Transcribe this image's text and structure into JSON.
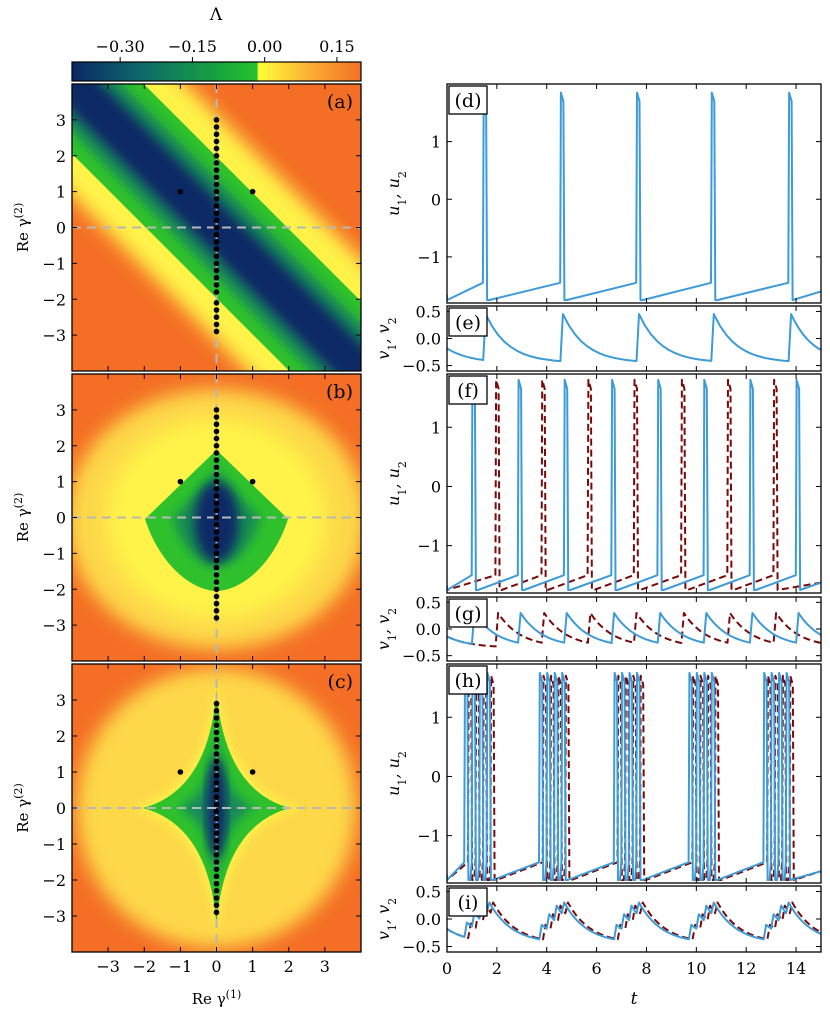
{
  "colorbar": {
    "label": "Λ",
    "ticks": [
      "−0.30",
      "−0.15",
      "0.00",
      "0.15"
    ],
    "tick_values": [
      -0.3,
      -0.15,
      0.0,
      0.15
    ],
    "range": [
      -0.4,
      0.2
    ],
    "colors": {
      "min": "#0b2a6b",
      "mid": "#1aa53a",
      "zero_low": "#22b830",
      "zero_high": "#ffff40",
      "max": "#f46f25"
    }
  },
  "chart_data": [
    {
      "type": "heatmap",
      "panel": "(a)",
      "xlabel": "Re γ(1)",
      "ylabel": "Re γ(2)",
      "xlim": [
        -4,
        4
      ],
      "ylim": [
        -4,
        4
      ],
      "xticks": [
        -3,
        -2,
        -1,
        0,
        1,
        2,
        3
      ],
      "yticks": [
        -3,
        -2,
        -1,
        0,
        1,
        2,
        3
      ],
      "stable_region": "diagonal band along x + y = 0",
      "points": [
        {
          "x": -1,
          "y": 1
        },
        {
          "x": 1,
          "y": 1
        },
        {
          "x": 0,
          "y": -2.9
        },
        {
          "x": 0,
          "y": -2.7
        },
        {
          "x": 0,
          "y": -2.5
        },
        {
          "x": 0,
          "y": -2.3
        },
        {
          "x": 0,
          "y": -2.1
        },
        {
          "x": 0,
          "y": -1.8
        },
        {
          "x": 0,
          "y": -1.6
        },
        {
          "x": 0,
          "y": -1.4
        },
        {
          "x": 0,
          "y": -1.2
        },
        {
          "x": 0,
          "y": -1.0
        },
        {
          "x": 0,
          "y": -0.8
        },
        {
          "x": 0,
          "y": -0.6
        },
        {
          "x": 0,
          "y": -0.4
        },
        {
          "x": 0,
          "y": -0.2
        },
        {
          "x": 0,
          "y": 0.0
        },
        {
          "x": 0,
          "y": 0.2
        },
        {
          "x": 0,
          "y": 0.4
        },
        {
          "x": 0,
          "y": 0.6
        },
        {
          "x": 0,
          "y": 0.8
        },
        {
          "x": 0,
          "y": 1.0
        },
        {
          "x": 0,
          "y": 1.2
        },
        {
          "x": 0,
          "y": 1.4
        },
        {
          "x": 0,
          "y": 1.6
        },
        {
          "x": 0,
          "y": 1.8
        },
        {
          "x": 0,
          "y": 2.0
        },
        {
          "x": 0,
          "y": 2.2
        },
        {
          "x": 0,
          "y": 2.4
        },
        {
          "x": 0,
          "y": 2.6
        },
        {
          "x": 0,
          "y": 2.8
        },
        {
          "x": 0,
          "y": 3.0
        }
      ]
    },
    {
      "type": "heatmap",
      "panel": "(b)",
      "xlabel": "",
      "ylabel": "Re γ(2)",
      "xlim": [
        -4,
        4
      ],
      "ylim": [
        -4,
        4
      ],
      "xticks": [],
      "yticks": [
        -3,
        -2,
        -1,
        0,
        1,
        2,
        3
      ],
      "stable_region": "diamond shaped region |x| + |y| < 2 with rounded lower half",
      "points": [
        {
          "x": -1,
          "y": 1
        },
        {
          "x": 1,
          "y": 1
        },
        {
          "x": 0,
          "y": -2.8
        },
        {
          "x": 0,
          "y": -2.6
        },
        {
          "x": 0,
          "y": -2.4
        },
        {
          "x": 0,
          "y": -2.2
        },
        {
          "x": 0,
          "y": -2.0
        },
        {
          "x": 0,
          "y": -1.8
        },
        {
          "x": 0,
          "y": -1.6
        },
        {
          "x": 0,
          "y": -1.4
        },
        {
          "x": 0,
          "y": -1.2
        },
        {
          "x": 0,
          "y": -1.0
        },
        {
          "x": 0,
          "y": -0.8
        },
        {
          "x": 0,
          "y": -0.6
        },
        {
          "x": 0,
          "y": -0.4
        },
        {
          "x": 0,
          "y": -0.2
        },
        {
          "x": 0,
          "y": 0.0
        },
        {
          "x": 0,
          "y": 0.2
        },
        {
          "x": 0,
          "y": 0.4
        },
        {
          "x": 0,
          "y": 0.6
        },
        {
          "x": 0,
          "y": 0.8
        },
        {
          "x": 0,
          "y": 1.0
        },
        {
          "x": 0,
          "y": 1.2
        },
        {
          "x": 0,
          "y": 1.4
        },
        {
          "x": 0,
          "y": 1.6
        },
        {
          "x": 0,
          "y": 1.8
        },
        {
          "x": 0,
          "y": 2.0
        },
        {
          "x": 0,
          "y": 2.2
        },
        {
          "x": 0,
          "y": 2.4
        },
        {
          "x": 0,
          "y": 2.6
        },
        {
          "x": 0,
          "y": 2.8
        },
        {
          "x": 0,
          "y": 3.0
        }
      ]
    },
    {
      "type": "heatmap",
      "panel": "(c)",
      "xlabel": "Re γ(1)",
      "ylabel": "Re γ(2)",
      "xlim": [
        -4,
        4
      ],
      "ylim": [
        -4,
        4
      ],
      "xticks": [
        -3,
        -2,
        -1,
        0,
        1,
        2,
        3
      ],
      "yticks": [
        -3,
        -2,
        -1,
        0,
        1,
        2,
        3
      ],
      "stable_region": "four-pointed star centered at origin",
      "points": [
        {
          "x": -1,
          "y": 1
        },
        {
          "x": 1,
          "y": 1
        },
        {
          "x": 0,
          "y": -2.9
        },
        {
          "x": 0,
          "y": -2.7
        },
        {
          "x": 0,
          "y": -2.5
        },
        {
          "x": 0,
          "y": -2.3
        },
        {
          "x": 0,
          "y": -2.1
        },
        {
          "x": 0,
          "y": -1.9
        },
        {
          "x": 0,
          "y": -1.7
        },
        {
          "x": 0,
          "y": -1.5
        },
        {
          "x": 0,
          "y": -1.3
        },
        {
          "x": 0,
          "y": -1.1
        },
        {
          "x": 0,
          "y": -0.9
        },
        {
          "x": 0,
          "y": -0.7
        },
        {
          "x": 0,
          "y": -0.5
        },
        {
          "x": 0,
          "y": -0.3
        },
        {
          "x": 0,
          "y": -0.1
        },
        {
          "x": 0,
          "y": 0.1
        },
        {
          "x": 0,
          "y": 0.3
        },
        {
          "x": 0,
          "y": 0.5
        },
        {
          "x": 0,
          "y": 0.7
        },
        {
          "x": 0,
          "y": 0.9
        },
        {
          "x": 0,
          "y": 1.1
        },
        {
          "x": 0,
          "y": 1.3
        },
        {
          "x": 0,
          "y": 1.5
        },
        {
          "x": 0,
          "y": 1.7
        },
        {
          "x": 0,
          "y": 1.9
        },
        {
          "x": 0,
          "y": 2.1
        },
        {
          "x": 0,
          "y": 2.3
        },
        {
          "x": 0,
          "y": 2.5
        },
        {
          "x": 0,
          "y": 2.7
        },
        {
          "x": 0,
          "y": 2.9
        }
      ]
    },
    {
      "type": "line",
      "panel": "(d)",
      "ylabel": "u1, u2",
      "xlim": [
        0,
        15
      ],
      "ylim": [
        -1.8,
        2.0
      ],
      "yticks": [
        -1,
        0,
        1
      ],
      "series": [
        {
          "name": "u1",
          "color": "#3d9bd8",
          "style": "solid",
          "spike_times": [
            1.45,
            4.55,
            7.6,
            10.6,
            13.7
          ],
          "peak": 1.85,
          "low": -1.75,
          "pre": -1.45
        }
      ]
    },
    {
      "type": "line",
      "panel": "(e)",
      "ylabel": "v1, v2",
      "xlim": [
        0,
        15
      ],
      "ylim": [
        -0.6,
        0.6
      ],
      "yticks": [
        -0.5,
        0.0,
        0.5
      ],
      "series": [
        {
          "name": "v1",
          "color": "#3d9bd8",
          "style": "solid",
          "spike_times": [
            1.45,
            4.55,
            7.6,
            10.6,
            13.7
          ],
          "peak": 0.45,
          "low": -0.45
        }
      ]
    },
    {
      "type": "line",
      "panel": "(f)",
      "ylabel": "u1, u2",
      "xlim": [
        0,
        15
      ],
      "ylim": [
        -1.8,
        1.9
      ],
      "yticks": [
        -1,
        0,
        1
      ],
      "series": [
        {
          "name": "u1",
          "color": "#3d9bd8",
          "style": "solid",
          "spike_times": [
            1.0,
            2.85,
            4.7,
            6.6,
            8.45,
            10.3,
            12.15,
            14.0
          ],
          "peak": 1.8,
          "low": -1.75,
          "pre": -1.5
        },
        {
          "name": "u2",
          "color": "#7a0a0a",
          "style": "dashed",
          "spike_times": [
            1.95,
            3.8,
            5.65,
            7.5,
            9.4,
            11.25,
            13.1
          ],
          "peak": 1.8,
          "low": -1.75,
          "pre": -1.5
        }
      ]
    },
    {
      "type": "line",
      "panel": "(g)",
      "ylabel": "v1, v2",
      "xlim": [
        0,
        15
      ],
      "ylim": [
        -0.6,
        0.6
      ],
      "yticks": [
        -0.5,
        0.0,
        0.5
      ],
      "series": [
        {
          "name": "v1",
          "color": "#3d9bd8",
          "style": "solid",
          "spike_times": [
            1.0,
            2.85,
            4.7,
            6.6,
            8.45,
            10.3,
            12.15,
            14.0
          ],
          "peak": 0.3,
          "low": -0.35
        },
        {
          "name": "v2",
          "color": "#7a0a0a",
          "style": "dashed",
          "spike_times": [
            1.95,
            3.8,
            5.65,
            7.5,
            9.4,
            11.25,
            13.1
          ],
          "peak": 0.3,
          "low": -0.35
        }
      ]
    },
    {
      "type": "line",
      "panel": "(h)",
      "ylabel": "u1, u2",
      "xlim": [
        0,
        15
      ],
      "ylim": [
        -1.8,
        1.9
      ],
      "yticks": [
        -1,
        0,
        1
      ],
      "series": [
        {
          "name": "u1",
          "color": "#3d9bd8",
          "style": "solid",
          "burst_starts": [
            0.7,
            3.7,
            6.7,
            9.7,
            12.7
          ],
          "spikes_per_burst": 4,
          "spike_gap": 0.3,
          "peak": 1.75,
          "low": -1.75,
          "pre": -1.45
        },
        {
          "name": "u2",
          "color": "#7a0a0a",
          "style": "dashed",
          "burst_starts": [
            0.85,
            3.85,
            6.85,
            9.85,
            12.85
          ],
          "spikes_per_burst": 4,
          "spike_gap": 0.3,
          "peak": 1.7,
          "low": -1.75,
          "pre": -1.45
        }
      ]
    },
    {
      "type": "line",
      "panel": "(i)",
      "ylabel": "v1, v2",
      "xlabel": "t",
      "xlim": [
        0,
        15
      ],
      "ylim": [
        -0.6,
        0.6
      ],
      "yticks": [
        -0.5,
        0.0,
        0.5
      ],
      "xticks": [
        0,
        2,
        4,
        6,
        8,
        10,
        12,
        14
      ],
      "series": [
        {
          "name": "v1",
          "color": "#3d9bd8",
          "style": "solid",
          "burst_starts": [
            0.7,
            3.7,
            6.7,
            9.7,
            12.7
          ],
          "spikes_per_burst": 4,
          "spike_gap": 0.3,
          "peak": 0.3,
          "low": -0.45
        },
        {
          "name": "v2",
          "color": "#7a0a0a",
          "style": "dashed",
          "burst_starts": [
            0.85,
            3.85,
            6.85,
            9.85,
            12.85
          ],
          "spikes_per_burst": 4,
          "spike_gap": 0.3,
          "peak": 0.3,
          "low": -0.45
        }
      ]
    }
  ]
}
